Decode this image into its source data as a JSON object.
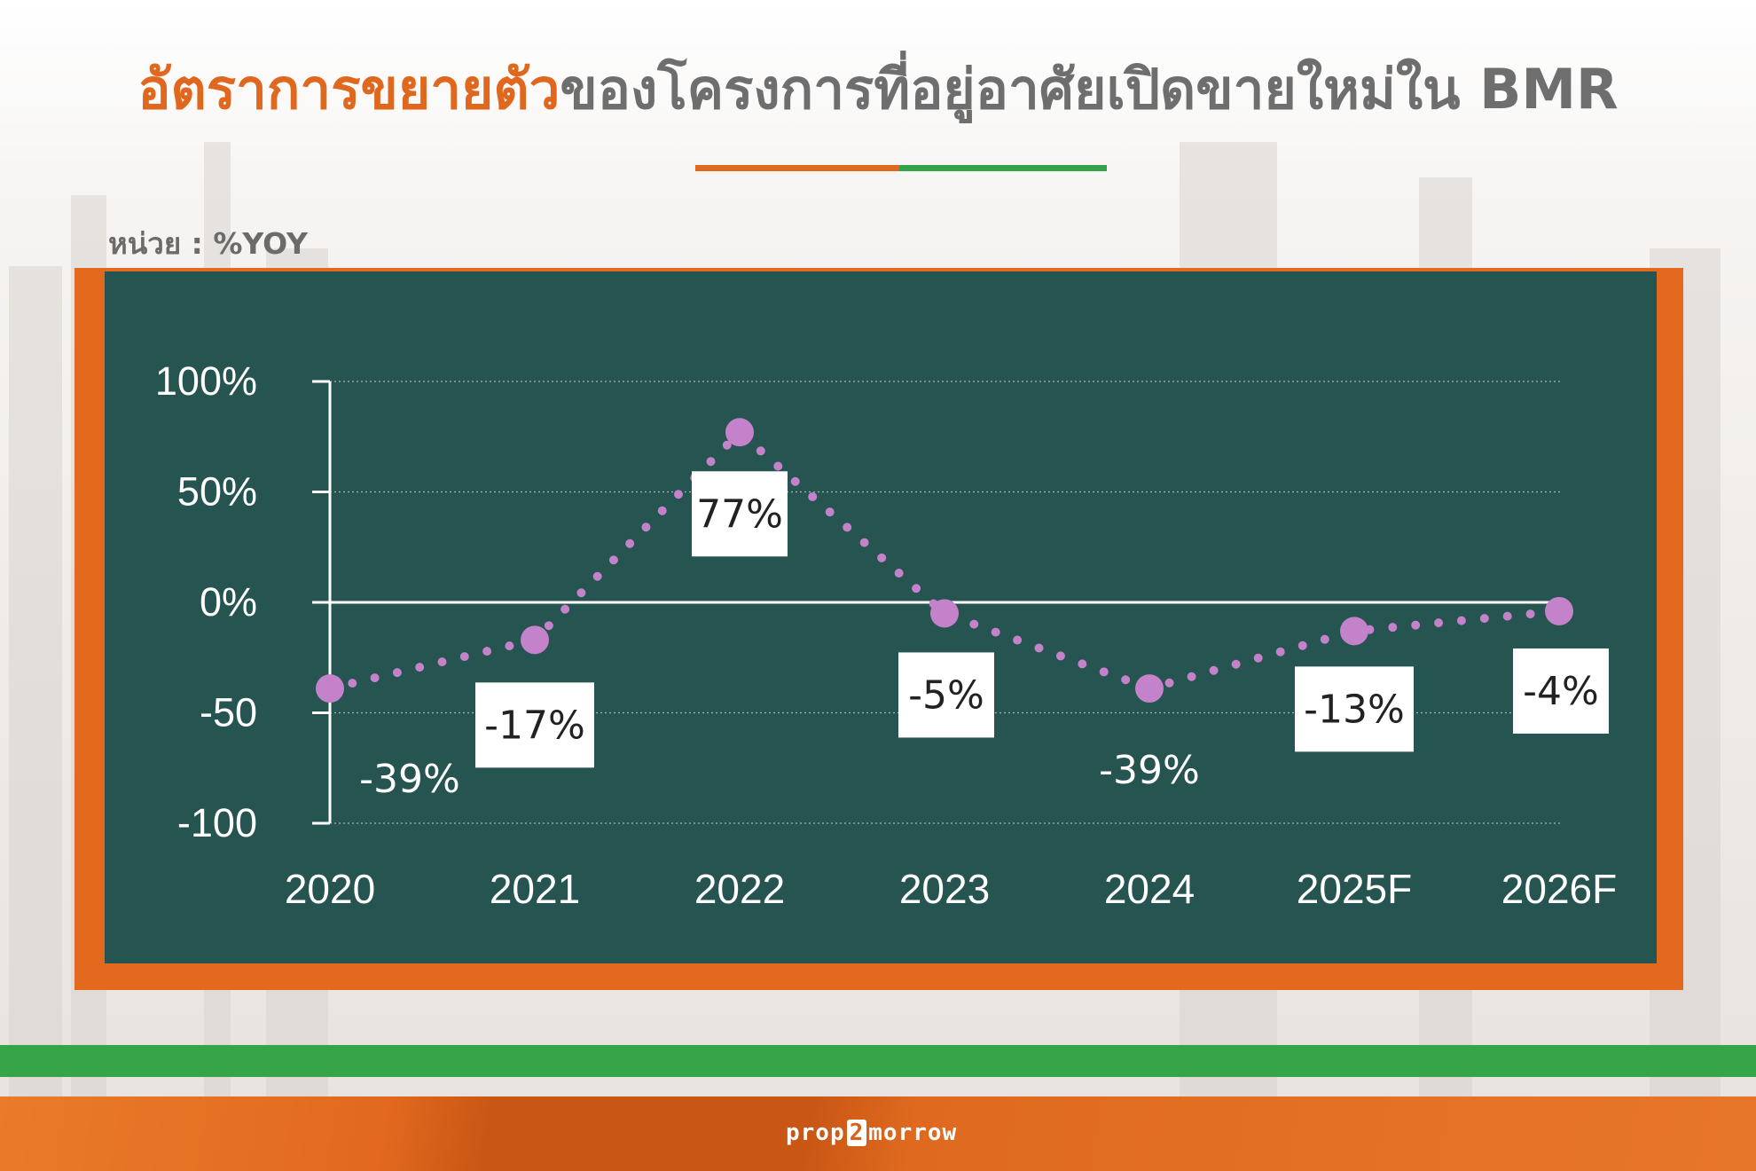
{
  "header": {
    "title_highlight": "อัตราการขยายตัว",
    "title_rest": "ของโครงการที่อยู่อาศัยเปิดขายใหม่ใน BMR",
    "unit": "หน่วย : %YOY"
  },
  "colors": {
    "accent_orange": "#e0671e",
    "accent_green": "#35a24a",
    "panel": "#265450",
    "series": "#c382c9"
  },
  "footer": {
    "logo_prefix": "prop",
    "logo_mid": "2",
    "logo_suffix": "morrow"
  },
  "chart_data": {
    "type": "line",
    "categories": [
      "2020",
      "2021",
      "2022",
      "2023",
      "2024",
      "2025F",
      "2026F"
    ],
    "series": [
      {
        "values": [
          -39,
          -17,
          77,
          -5,
          -39,
          -13,
          -4
        ]
      }
    ],
    "data_labels": [
      "-39%",
      "-17%",
      "77%",
      "-5%",
      "-39%",
      "-13%",
      "-4%"
    ],
    "boxed_labels": [
      false,
      true,
      true,
      true,
      false,
      true,
      true
    ],
    "y_ticks": [
      100,
      50,
      0,
      -50,
      -100
    ],
    "y_tick_labels": [
      "100%",
      "50%",
      "0%",
      "-50",
      "-100"
    ],
    "ylim": [
      -100,
      100
    ],
    "grid": true,
    "line_style": "dotted"
  }
}
